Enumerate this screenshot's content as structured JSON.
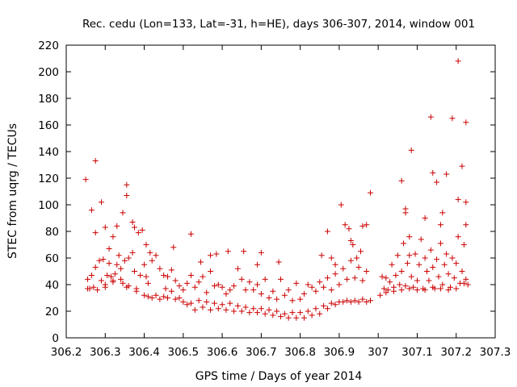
{
  "chart_data": {
    "type": "scatter",
    "title": "Rec. cedu (Lon=133, Lat=-31, h=HE), days 306-307, 2014, window 001",
    "xlabel": "GPS time / Days of year 2014",
    "ylabel": "STEC from uqrg / TECUs",
    "xlim": [
      306.2,
      307.3
    ],
    "ylim": [
      0,
      220
    ],
    "x_ticks": [
      "306.2",
      "306.3",
      "306.4",
      "306.5",
      "306.6",
      "306.7",
      "306.8",
      "306.9",
      "307",
      "307.1",
      "307.2",
      "307.3"
    ],
    "y_ticks": [
      "0",
      "20",
      "40",
      "60",
      "80",
      "100",
      "120",
      "140",
      "160",
      "180",
      "200",
      "220"
    ],
    "grid": false,
    "legend": "none",
    "marker": "plus",
    "marker_color": "#cc0000",
    "series": [
      {
        "values": [
          [
            306.25,
            119
          ],
          [
            306.255,
            44
          ],
          [
            306.265,
            96
          ],
          [
            306.275,
            133
          ],
          [
            306.275,
            79
          ],
          [
            306.29,
            102
          ],
          [
            306.3,
            83
          ],
          [
            306.31,
            67
          ],
          [
            306.32,
            76
          ],
          [
            306.33,
            84
          ],
          [
            306.345,
            94
          ],
          [
            306.355,
            115
          ],
          [
            306.355,
            107
          ],
          [
            306.37,
            87
          ],
          [
            306.375,
            83
          ],
          [
            306.385,
            79
          ],
          [
            306.395,
            81
          ],
          [
            306.405,
            70
          ],
          [
            306.415,
            64
          ],
          [
            306.475,
            68
          ],
          [
            306.52,
            78
          ],
          [
            306.545,
            57
          ],
          [
            306.57,
            62
          ],
          [
            306.585,
            63
          ],
          [
            306.615,
            65
          ],
          [
            306.655,
            65
          ],
          [
            306.69,
            55
          ],
          [
            306.7,
            64
          ],
          [
            306.745,
            57
          ],
          [
            306.855,
            62
          ],
          [
            306.87,
            80
          ],
          [
            306.88,
            60
          ],
          [
            306.89,
            55
          ],
          [
            306.905,
            100
          ],
          [
            306.915,
            85
          ],
          [
            306.925,
            82
          ],
          [
            306.93,
            73
          ],
          [
            306.935,
            70
          ],
          [
            306.945,
            60
          ],
          [
            306.955,
            65
          ],
          [
            306.96,
            84
          ],
          [
            306.97,
            85
          ],
          [
            306.98,
            109
          ],
          [
            307.06,
            118
          ],
          [
            307.07,
            97
          ],
          [
            307.07,
            94
          ],
          [
            307.08,
            76
          ],
          [
            307.085,
            141
          ],
          [
            307.12,
            90
          ],
          [
            307.135,
            166
          ],
          [
            307.14,
            124
          ],
          [
            307.15,
            117
          ],
          [
            307.16,
            85
          ],
          [
            307.165,
            94
          ],
          [
            307.175,
            123
          ],
          [
            307.19,
            165
          ],
          [
            307.205,
            208
          ],
          [
            307.205,
            104
          ],
          [
            307.215,
            129
          ],
          [
            307.225,
            162
          ],
          [
            307.225,
            102
          ],
          [
            307.225,
            85
          ],
          [
            306.255,
            37
          ],
          [
            306.26,
            37
          ],
          [
            306.265,
            47
          ],
          [
            306.27,
            38
          ],
          [
            306.275,
            53
          ],
          [
            306.285,
            58
          ],
          [
            306.29,
            43
          ],
          [
            306.295,
            59
          ],
          [
            306.3,
            40
          ],
          [
            306.305,
            47
          ],
          [
            306.31,
            56
          ],
          [
            306.315,
            46
          ],
          [
            306.32,
            43
          ],
          [
            306.325,
            48
          ],
          [
            306.33,
            55
          ],
          [
            306.335,
            62
          ],
          [
            306.34,
            52
          ],
          [
            306.345,
            41
          ],
          [
            306.35,
            58
          ],
          [
            306.355,
            38
          ],
          [
            306.36,
            60
          ],
          [
            306.37,
            64
          ],
          [
            306.375,
            50
          ],
          [
            306.38,
            37
          ],
          [
            306.39,
            47
          ],
          [
            306.4,
            55
          ],
          [
            306.405,
            46
          ],
          [
            306.41,
            41
          ],
          [
            306.42,
            58
          ],
          [
            306.43,
            62
          ],
          [
            306.44,
            52
          ],
          [
            306.45,
            47
          ],
          [
            306.455,
            37
          ],
          [
            306.46,
            46
          ],
          [
            306.47,
            51
          ],
          [
            306.48,
            43
          ],
          [
            306.49,
            39
          ],
          [
            306.5,
            36
          ],
          [
            306.51,
            41
          ],
          [
            306.52,
            47
          ],
          [
            306.53,
            38
          ],
          [
            306.54,
            42
          ],
          [
            306.55,
            46
          ],
          [
            306.56,
            34
          ],
          [
            306.57,
            50
          ],
          [
            306.58,
            39
          ],
          [
            306.59,
            40
          ],
          [
            306.6,
            38
          ],
          [
            306.61,
            33
          ],
          [
            306.62,
            36
          ],
          [
            306.63,
            39
          ],
          [
            306.64,
            52
          ],
          [
            306.65,
            44
          ],
          [
            306.66,
            36
          ],
          [
            306.67,
            42
          ],
          [
            306.68,
            36
          ],
          [
            306.69,
            40
          ],
          [
            306.7,
            33
          ],
          [
            306.71,
            44
          ],
          [
            306.72,
            30
          ],
          [
            306.73,
            35
          ],
          [
            306.74,
            29
          ],
          [
            306.75,
            44
          ],
          [
            306.76,
            32
          ],
          [
            306.77,
            36
          ],
          [
            306.78,
            28
          ],
          [
            306.79,
            41
          ],
          [
            306.8,
            29
          ],
          [
            306.81,
            33
          ],
          [
            306.82,
            40
          ],
          [
            306.83,
            38
          ],
          [
            306.84,
            35
          ],
          [
            306.85,
            42
          ],
          [
            306.86,
            38
          ],
          [
            306.87,
            45
          ],
          [
            306.88,
            36
          ],
          [
            306.89,
            48
          ],
          [
            306.9,
            40
          ],
          [
            306.91,
            52
          ],
          [
            306.92,
            44
          ],
          [
            306.93,
            58
          ],
          [
            306.94,
            45
          ],
          [
            306.95,
            53
          ],
          [
            306.96,
            43
          ],
          [
            306.97,
            50
          ],
          [
            306.28,
            36
          ],
          [
            306.3,
            38
          ],
          [
            306.32,
            42
          ],
          [
            306.34,
            44
          ],
          [
            306.36,
            39
          ],
          [
            306.38,
            35
          ],
          [
            306.4,
            32
          ],
          [
            306.42,
            30
          ],
          [
            306.44,
            29
          ],
          [
            306.46,
            30
          ],
          [
            306.48,
            29
          ],
          [
            306.5,
            27
          ],
          [
            306.52,
            26
          ],
          [
            306.54,
            28
          ],
          [
            306.56,
            27
          ],
          [
            306.58,
            26
          ],
          [
            306.6,
            25
          ],
          [
            306.62,
            26
          ],
          [
            306.64,
            24
          ],
          [
            306.66,
            23
          ],
          [
            306.68,
            22
          ],
          [
            306.7,
            22
          ],
          [
            306.72,
            21
          ],
          [
            306.74,
            20
          ],
          [
            306.76,
            18
          ],
          [
            306.78,
            19
          ],
          [
            306.8,
            19
          ],
          [
            306.82,
            20
          ],
          [
            306.84,
            22
          ],
          [
            306.86,
            24
          ],
          [
            306.88,
            26
          ],
          [
            306.9,
            27
          ],
          [
            306.92,
            28
          ],
          [
            306.94,
            28
          ],
          [
            306.96,
            29
          ],
          [
            306.98,
            28
          ],
          [
            306.41,
            31
          ],
          [
            306.43,
            32
          ],
          [
            306.45,
            31
          ],
          [
            306.47,
            35
          ],
          [
            306.49,
            30
          ],
          [
            306.51,
            25
          ],
          [
            306.53,
            21
          ],
          [
            306.55,
            23
          ],
          [
            306.57,
            21
          ],
          [
            306.59,
            22
          ],
          [
            306.61,
            21
          ],
          [
            306.63,
            20
          ],
          [
            306.65,
            20
          ],
          [
            306.67,
            19
          ],
          [
            306.69,
            19
          ],
          [
            306.71,
            18
          ],
          [
            306.73,
            17
          ],
          [
            306.75,
            16
          ],
          [
            306.77,
            15
          ],
          [
            306.79,
            15
          ],
          [
            306.81,
            15
          ],
          [
            306.83,
            17
          ],
          [
            306.85,
            18
          ],
          [
            306.87,
            22
          ],
          [
            306.89,
            25
          ],
          [
            306.91,
            27
          ],
          [
            306.93,
            27
          ],
          [
            306.95,
            27
          ],
          [
            306.97,
            27
          ],
          [
            307.01,
            46
          ],
          [
            307.015,
            37
          ],
          [
            307.02,
            45
          ],
          [
            307.025,
            36
          ],
          [
            307.03,
            42
          ],
          [
            307.035,
            55
          ],
          [
            307.04,
            38
          ],
          [
            307.045,
            47
          ],
          [
            307.05,
            62
          ],
          [
            307.055,
            40
          ],
          [
            307.06,
            50
          ],
          [
            307.065,
            71
          ],
          [
            307.07,
            39
          ],
          [
            307.075,
            56
          ],
          [
            307.08,
            62
          ],
          [
            307.085,
            46
          ],
          [
            307.09,
            38
          ],
          [
            307.095,
            63
          ],
          [
            307.1,
            43
          ],
          [
            307.105,
            55
          ],
          [
            307.11,
            74
          ],
          [
            307.115,
            37
          ],
          [
            307.12,
            60
          ],
          [
            307.125,
            50
          ],
          [
            307.13,
            43
          ],
          [
            307.135,
            66
          ],
          [
            307.14,
            53
          ],
          [
            307.145,
            37
          ],
          [
            307.15,
            59
          ],
          [
            307.155,
            46
          ],
          [
            307.16,
            71
          ],
          [
            307.165,
            40
          ],
          [
            307.17,
            55
          ],
          [
            307.175,
            63
          ],
          [
            307.18,
            48
          ],
          [
            307.185,
            38
          ],
          [
            307.19,
            60
          ],
          [
            307.195,
            45
          ],
          [
            307.2,
            56
          ],
          [
            307.205,
            76
          ],
          [
            307.21,
            41
          ],
          [
            307.215,
            50
          ],
          [
            307.22,
            70
          ],
          [
            307.225,
            44
          ],
          [
            307.23,
            40
          ],
          [
            307.005,
            32
          ],
          [
            307.02,
            34
          ],
          [
            307.04,
            35
          ],
          [
            307.06,
            36
          ],
          [
            307.08,
            37
          ],
          [
            307.1,
            36
          ],
          [
            307.12,
            36
          ],
          [
            307.14,
            38
          ],
          [
            307.16,
            37
          ],
          [
            307.18,
            36
          ],
          [
            307.2,
            37
          ],
          [
            307.22,
            41
          ]
        ]
      }
    ]
  }
}
